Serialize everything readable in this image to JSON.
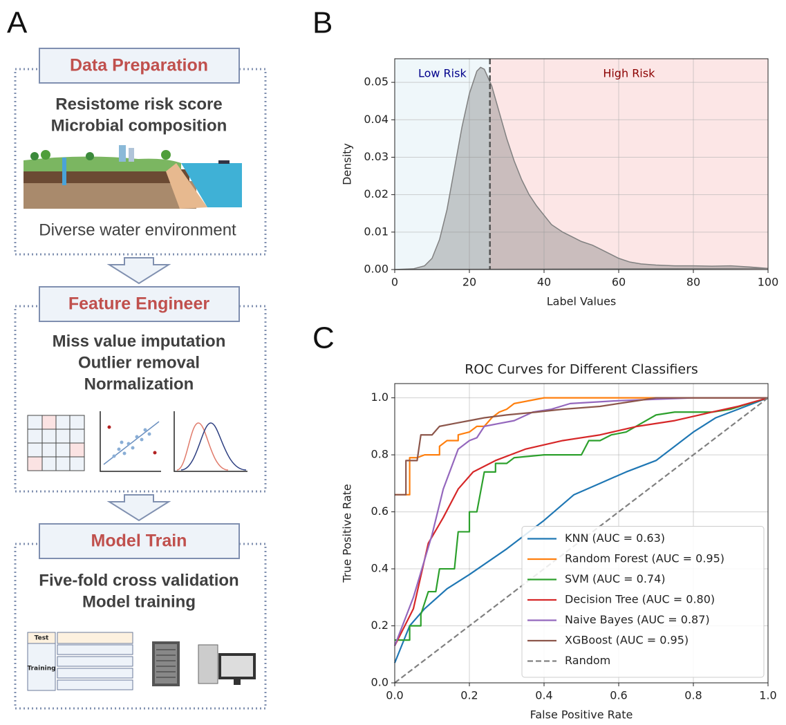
{
  "panel_labels": [
    "A",
    "B",
    "C"
  ],
  "workflow": [
    {
      "title": "Data Preparation",
      "lines": [
        "Resistome risk score",
        "Microbial composition"
      ],
      "caption": "Diverse water environment"
    },
    {
      "title": "Feature Engineer",
      "lines": [
        "Miss value imputation",
        "Outlier removal",
        "Normalization"
      ]
    },
    {
      "title": "Model Train",
      "lines": [
        "Five-fold cross validation",
        "Model training"
      ],
      "table": [
        "Test",
        "Training"
      ]
    }
  ],
  "chart_data": [
    {
      "type": "area",
      "xlabel": "Label Values",
      "ylabel": "Density",
      "color": "#808080",
      "x": [
        0,
        5,
        8,
        10,
        12,
        14,
        16,
        18,
        20,
        22,
        23,
        24,
        26,
        28,
        30,
        32,
        34,
        36,
        38,
        40,
        42,
        45,
        48,
        50,
        53,
        55,
        58,
        60,
        63,
        66,
        70,
        75,
        80,
        85,
        90,
        95,
        100
      ],
      "values": [
        0,
        0.0002,
        0.001,
        0.003,
        0.008,
        0.016,
        0.027,
        0.038,
        0.047,
        0.053,
        0.054,
        0.0535,
        0.049,
        0.042,
        0.035,
        0.029,
        0.024,
        0.02,
        0.017,
        0.0145,
        0.012,
        0.01,
        0.0085,
        0.0075,
        0.0065,
        0.0055,
        0.004,
        0.003,
        0.002,
        0.0015,
        0.0012,
        0.001,
        0.001,
        0.0009,
        0.001,
        0.0007,
        0.0003
      ],
      "threshold": 25.5,
      "regions": [
        {
          "label": "Low Risk",
          "color": "#add8e6",
          "text_color": "#00008b"
        },
        {
          "label": "High Risk",
          "color": "#f08080",
          "text_color": "#8b0000"
        }
      ],
      "xlim": [
        0,
        100
      ],
      "ylim": [
        0,
        0.0563
      ],
      "xticks": [
        0,
        20,
        40,
        60,
        80,
        100
      ],
      "yticks": [
        {
          "value": 0,
          "label": "0.00"
        },
        {
          "value": 0.01,
          "label": "0.01"
        },
        {
          "value": 0.02,
          "label": "0.02"
        },
        {
          "value": 0.03,
          "label": "0.03"
        },
        {
          "value": 0.04,
          "label": "0.04"
        },
        {
          "value": 0.05,
          "label": "0.05"
        }
      ],
      "grid": true
    },
    {
      "type": "line",
      "title": "ROC Curves for Different Classifiers",
      "xlabel": "False Positive Rate",
      "ylabel": "True Positive Rate",
      "xlim": [
        0,
        1
      ],
      "ylim": [
        0,
        1.05
      ],
      "xticks": [
        {
          "value": 0,
          "label": "0.0"
        },
        {
          "value": 0.2,
          "label": "0.2"
        },
        {
          "value": 0.4,
          "label": "0.4"
        },
        {
          "value": 0.6,
          "label": "0.6"
        },
        {
          "value": 0.8,
          "label": "0.8"
        },
        {
          "value": 1,
          "label": "1.0"
        }
      ],
      "yticks": [
        {
          "value": 0,
          "label": "0.0"
        },
        {
          "value": 0.2,
          "label": "0.2"
        },
        {
          "value": 0.4,
          "label": "0.4"
        },
        {
          "value": 0.6,
          "label": "0.6"
        },
        {
          "value": 0.8,
          "label": "0.8"
        },
        {
          "value": 1,
          "label": "1.0"
        }
      ],
      "grid": true,
      "legend": "lower right",
      "series": [
        {
          "name": "KNN (AUC = 0.63)",
          "color": "#1f77b4",
          "x": [
            0,
            0.04,
            0.08,
            0.14,
            0.2,
            0.3,
            0.4,
            0.48,
            0.55,
            0.62,
            0.7,
            0.76,
            0.8,
            0.86,
            0.92,
            1
          ],
          "values": [
            0.07,
            0.2,
            0.26,
            0.33,
            0.38,
            0.47,
            0.57,
            0.66,
            0.7,
            0.74,
            0.78,
            0.84,
            0.88,
            0.93,
            0.96,
            1
          ]
        },
        {
          "name": "Random Forest (AUC = 0.95)",
          "color": "#ff7f0e",
          "x": [
            0,
            0.04,
            0.04,
            0.06,
            0.08,
            0.12,
            0.12,
            0.14,
            0.17,
            0.17,
            0.2,
            0.22,
            0.24,
            0.26,
            0.28,
            0.3,
            0.32,
            0.36,
            0.4,
            1
          ],
          "values": [
            0.66,
            0.66,
            0.79,
            0.79,
            0.8,
            0.8,
            0.83,
            0.85,
            0.85,
            0.87,
            0.88,
            0.9,
            0.9,
            0.93,
            0.95,
            0.96,
            0.98,
            0.99,
            1,
            1
          ]
        },
        {
          "name": "SVM (AUC = 0.74)",
          "color": "#2ca02c",
          "x": [
            0,
            0.04,
            0.04,
            0.07,
            0.07,
            0.09,
            0.11,
            0.12,
            0.16,
            0.17,
            0.2,
            0.2,
            0.22,
            0.24,
            0.27,
            0.27,
            0.3,
            0.32,
            0.4,
            0.5,
            0.52,
            0.55,
            0.58,
            0.62,
            0.66,
            0.7,
            0.75,
            0.85,
            0.9,
            0.95,
            1
          ],
          "values": [
            0.15,
            0.15,
            0.2,
            0.2,
            0.24,
            0.32,
            0.32,
            0.4,
            0.4,
            0.53,
            0.53,
            0.6,
            0.6,
            0.74,
            0.74,
            0.77,
            0.77,
            0.79,
            0.8,
            0.8,
            0.85,
            0.85,
            0.87,
            0.88,
            0.91,
            0.94,
            0.95,
            0.95,
            0.96,
            0.98,
            1
          ]
        },
        {
          "name": "Decision Tree (AUC = 0.80)",
          "color": "#d62728",
          "x": [
            0,
            0.05,
            0.09,
            0.13,
            0.17,
            0.21,
            0.27,
            0.35,
            0.45,
            0.55,
            0.65,
            0.75,
            0.85,
            0.92,
            1
          ],
          "values": [
            0.13,
            0.26,
            0.49,
            0.58,
            0.68,
            0.74,
            0.78,
            0.82,
            0.85,
            0.87,
            0.9,
            0.92,
            0.95,
            0.97,
            1
          ]
        },
        {
          "name": "Naive Bayes (AUC = 0.87)",
          "color": "#9467bd",
          "x": [
            0,
            0.05,
            0.1,
            0.13,
            0.17,
            0.2,
            0.22,
            0.24,
            0.28,
            0.32,
            0.37,
            0.42,
            0.47,
            0.6,
            0.8,
            1
          ],
          "values": [
            0.13,
            0.3,
            0.52,
            0.68,
            0.82,
            0.85,
            0.86,
            0.9,
            0.91,
            0.92,
            0.95,
            0.96,
            0.98,
            0.99,
            1,
            1
          ]
        },
        {
          "name": "XGBoost (AUC = 0.95)",
          "color": "#8c564b",
          "x": [
            0,
            0.03,
            0.03,
            0.06,
            0.07,
            0.1,
            0.12,
            0.16,
            0.2,
            0.24,
            0.3,
            0.38,
            0.45,
            0.55,
            0.65,
            0.7,
            1
          ],
          "values": [
            0.66,
            0.66,
            0.78,
            0.78,
            0.87,
            0.87,
            0.9,
            0.91,
            0.92,
            0.93,
            0.94,
            0.95,
            0.96,
            0.97,
            0.99,
            1,
            1
          ]
        },
        {
          "name": "Random",
          "color": "#808080",
          "linestyle": "dashed",
          "x": [
            0,
            1
          ],
          "values": [
            0,
            1
          ]
        }
      ]
    }
  ]
}
